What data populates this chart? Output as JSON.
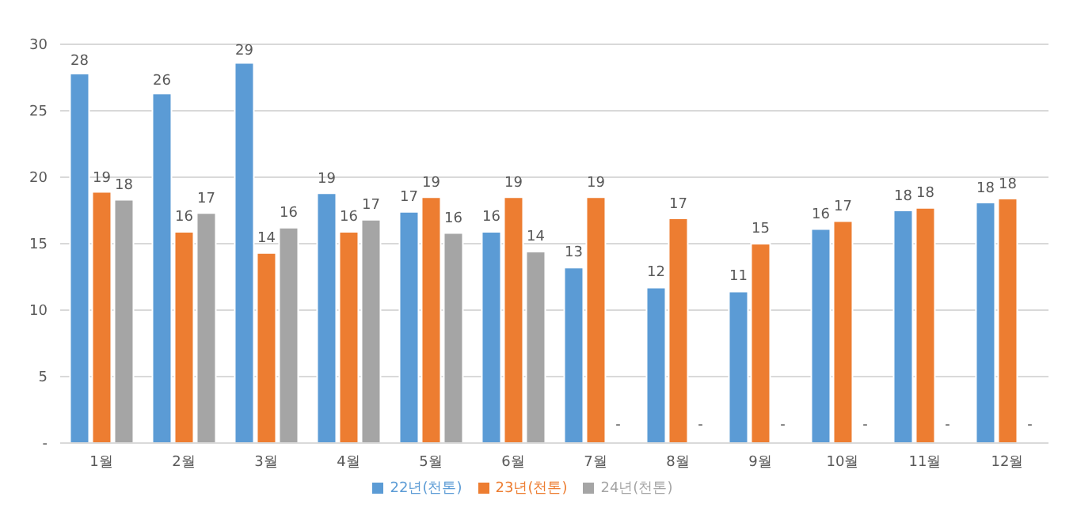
{
  "chart_data": {
    "type": "bar",
    "categories": [
      "1월",
      "2월",
      "3월",
      "4월",
      "5월",
      "6월",
      "7월",
      "8월",
      "9월",
      "10월",
      "11월",
      "12월"
    ],
    "series": [
      {
        "name": "22년(천톤)",
        "color": "#5b9bd5",
        "values": [
          27.8,
          26.3,
          28.6,
          18.8,
          17.4,
          15.9,
          13.2,
          11.7,
          11.4,
          16.1,
          17.5,
          18.1
        ],
        "value_labels": [
          "28",
          "26",
          "29",
          "19",
          "17",
          "16",
          "13",
          "12",
          "11",
          "16",
          "18",
          "18"
        ]
      },
      {
        "name": "23년(천톤)",
        "color": "#ed7d31",
        "values": [
          18.9,
          15.9,
          14.3,
          15.9,
          18.5,
          18.5,
          18.5,
          16.9,
          15.0,
          16.7,
          17.7,
          18.4
        ],
        "value_labels": [
          "19",
          "16",
          "14",
          "16",
          "19",
          "19",
          "19",
          "17",
          "15",
          "17",
          "18",
          "18"
        ]
      },
      {
        "name": "24년(천톤)",
        "color": "#a5a5a5",
        "values": [
          18.3,
          17.3,
          16.2,
          16.8,
          15.8,
          14.4,
          null,
          null,
          null,
          null,
          null,
          null
        ],
        "value_labels": [
          "18",
          "17",
          "16",
          "17",
          "16",
          "14",
          "-",
          "-",
          "-",
          "-",
          "-",
          "-"
        ]
      }
    ],
    "ylim": [
      0,
      30
    ],
    "yticks": [
      {
        "value": 0,
        "label": "-"
      },
      5,
      10,
      15,
      20,
      25,
      30
    ],
    "grid": "y",
    "legend": "bottom"
  }
}
